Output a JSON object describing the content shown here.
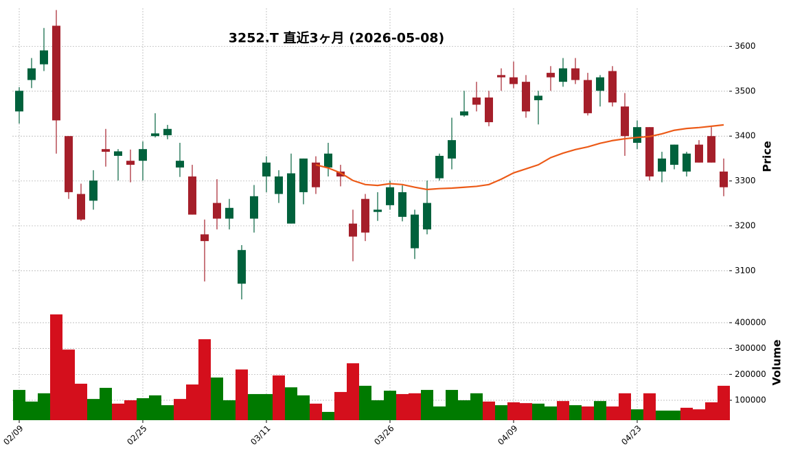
{
  "chart_data": {
    "type": "candlestick",
    "title": "3252.T  直近3ヶ月  (2026-05-08)",
    "ylabel": "Price",
    "categories": [
      "02/09",
      null,
      null,
      null,
      null,
      null,
      null,
      null,
      null,
      null,
      "02/25",
      null,
      null,
      null,
      null,
      null,
      null,
      null,
      null,
      null,
      "03/11",
      null,
      null,
      null,
      null,
      null,
      null,
      null,
      null,
      null,
      "03/26",
      null,
      null,
      null,
      null,
      null,
      null,
      null,
      null,
      null,
      "04/09",
      null,
      null,
      null,
      null,
      null,
      null,
      null,
      null,
      null,
      "04/23",
      null,
      null,
      null,
      null,
      null,
      null,
      null
    ],
    "open": [
      3455,
      3525,
      3560,
      3646,
      3400,
      3271,
      3256,
      3371,
      3356,
      3345,
      3345,
      3400,
      3402,
      3330,
      3310,
      3181,
      3251,
      3216,
      3071,
      3216,
      3310,
      3271,
      3205,
      3275,
      3341,
      3330,
      3321,
      3205,
      3260,
      3231,
      3246,
      3220,
      3150,
      3192,
      3306,
      3350,
      3446,
      3486,
      3486,
      3536,
      3531,
      3521,
      3480,
      3541,
      3521,
      3551,
      3525,
      3501,
      3545,
      3466,
      3385,
      3420,
      3321,
      3336,
      3321,
      3381,
      3400,
      3321
    ],
    "high": [
      3509,
      3574,
      3641,
      3681,
      3400,
      3294,
      3324,
      3416,
      3371,
      3370,
      3388,
      3451,
      3425,
      3385,
      3336,
      3214,
      3304,
      3260,
      3157,
      3291,
      3355,
      3324,
      3361,
      3350,
      3355,
      3385,
      3336,
      3236,
      3271,
      3275,
      3301,
      3290,
      3236,
      3301,
      3361,
      3441,
      3501,
      3521,
      3501,
      3551,
      3566,
      3536,
      3501,
      3556,
      3574,
      3574,
      3541,
      3536,
      3556,
      3496,
      3435,
      3420,
      3365,
      3381,
      3365,
      3391,
      3420,
      3350
    ],
    "low": [
      3428,
      3507,
      3545,
      3361,
      3260,
      3211,
      3236,
      3332,
      3301,
      3297,
      3301,
      3397,
      3393,
      3309,
      3225,
      3076,
      3192,
      3192,
      3036,
      3185,
      3275,
      3251,
      3205,
      3248,
      3271,
      3310,
      3288,
      3121,
      3166,
      3211,
      3236,
      3210,
      3126,
      3181,
      3301,
      3326,
      3443,
      3455,
      3422,
      3501,
      3507,
      3441,
      3426,
      3501,
      3510,
      3516,
      3446,
      3466,
      3466,
      3356,
      3371,
      3301,
      3297,
      3326,
      3310,
      3341,
      3341,
      3266
    ],
    "close": [
      3501,
      3551,
      3591,
      3435,
      3275,
      3214,
      3301,
      3365,
      3366,
      3336,
      3371,
      3406,
      3416,
      3345,
      3225,
      3166,
      3216,
      3240,
      3146,
      3266,
      3341,
      3310,
      3317,
      3350,
      3286,
      3361,
      3310,
      3176,
      3185,
      3236,
      3286,
      3275,
      3225,
      3251,
      3356,
      3391,
      3455,
      3470,
      3431,
      3531,
      3516,
      3455,
      3490,
      3531,
      3551,
      3525,
      3451,
      3531,
      3475,
      3400,
      3420,
      3310,
      3350,
      3381,
      3361,
      3341,
      3341,
      3286
    ],
    "up_color": "#00613c",
    "down_color": "#a51f2a",
    "ma": {
      "color": "#ec5a17",
      "values": [
        null,
        null,
        null,
        null,
        null,
        null,
        null,
        null,
        null,
        null,
        null,
        null,
        null,
        null,
        null,
        null,
        null,
        null,
        null,
        null,
        null,
        null,
        null,
        null,
        3336,
        3329,
        3318,
        3301,
        3292,
        3290,
        3294,
        3292,
        3286,
        3281,
        3283,
        3284,
        3286,
        3288,
        3292,
        3304,
        3318,
        3327,
        3336,
        3352,
        3362,
        3370,
        3376,
        3384,
        3390,
        3394,
        3397,
        3399,
        3405,
        3413,
        3417,
        3419,
        3422,
        3425
      ]
    },
    "ylim": [
      3030,
      3685
    ],
    "yticks": [
      3100,
      3200,
      3300,
      3400,
      3500,
      3600
    ],
    "grid": true,
    "volume": {
      "ylabel": "Volume",
      "values": [
        140000,
        95000,
        127000,
        432000,
        296000,
        164000,
        105000,
        148000,
        87000,
        100000,
        108000,
        119000,
        81000,
        105000,
        161000,
        336000,
        188000,
        100000,
        219000,
        124000,
        124000,
        196000,
        150000,
        119000,
        87000,
        55000,
        132000,
        243000,
        156000,
        100000,
        137000,
        124000,
        127000,
        140000,
        76000,
        140000,
        100000,
        127000,
        95000,
        81000,
        92000,
        89000,
        87000,
        76000,
        97000,
        81000,
        76000,
        97000,
        76000,
        127000,
        65000,
        127000,
        60000,
        60000,
        71000,
        65000,
        92000,
        156000
      ],
      "colors": [
        "#007a00",
        "#007a00",
        "#007a00",
        "#d40f1c",
        "#d40f1c",
        "#d40f1c",
        "#007a00",
        "#007a00",
        "#d40f1c",
        "#d40f1c",
        "#007a00",
        "#007a00",
        "#007a00",
        "#d40f1c",
        "#d40f1c",
        "#d40f1c",
        "#007a00",
        "#007a00",
        "#d40f1c",
        "#007a00",
        "#007a00",
        "#d40f1c",
        "#007a00",
        "#007a00",
        "#d40f1c",
        "#007a00",
        "#d40f1c",
        "#d40f1c",
        "#007a00",
        "#007a00",
        "#007a00",
        "#d40f1c",
        "#d40f1c",
        "#007a00",
        "#007a00",
        "#007a00",
        "#007a00",
        "#007a00",
        "#d40f1c",
        "#007a00",
        "#d40f1c",
        "#d40f1c",
        "#007a00",
        "#007a00",
        "#d40f1c",
        "#007a00",
        "#d40f1c",
        "#007a00",
        "#d40f1c",
        "#d40f1c",
        "#007a00",
        "#d40f1c",
        "#007a00",
        "#007a00",
        "#d40f1c",
        "#d40f1c",
        "#d40f1c",
        "#d40f1c"
      ],
      "ylim": [
        23000,
        461000
      ],
      "yticks": [
        100000,
        200000,
        300000,
        400000
      ]
    }
  }
}
